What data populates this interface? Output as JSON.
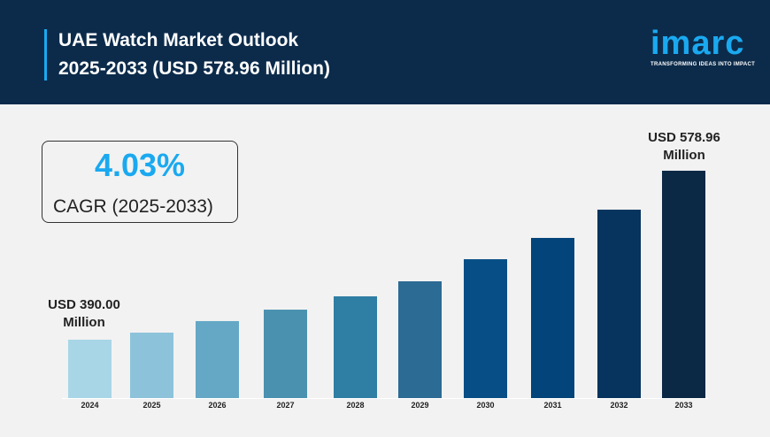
{
  "header": {
    "title_line1": "UAE Watch Market Outlook",
    "title_line2": "2025-2033 (USD 578.96 Million)",
    "logo": "imarc",
    "tagline": "TRANSFORMING IDEAS INTO IMPACT"
  },
  "cagr": {
    "value": "4.03%",
    "label": "CAGR (2025-2033)"
  },
  "chart_data": {
    "type": "bar",
    "categories": [
      "2024",
      "2025",
      "2026",
      "2027",
      "2028",
      "2029",
      "2030",
      "2031",
      "2032",
      "2033"
    ],
    "values": [
      390.0,
      397.9,
      410.8,
      423.6,
      438.5,
      455.3,
      480.0,
      503.8,
      535.4,
      578.96
    ],
    "unit": "USD Million",
    "annotations": {
      "first": [
        "USD 390.00",
        "Million"
      ],
      "last": [
        "USD 578.96",
        "Million"
      ]
    },
    "colors": [
      "#a8d6e7",
      "#8cc3da",
      "#65a8c6",
      "#4a91b0",
      "#2f7ea4",
      "#2b6b94",
      "#064e85",
      "#03447a",
      "#07345e",
      "#0b2845"
    ],
    "grid": false,
    "legend": "none"
  }
}
